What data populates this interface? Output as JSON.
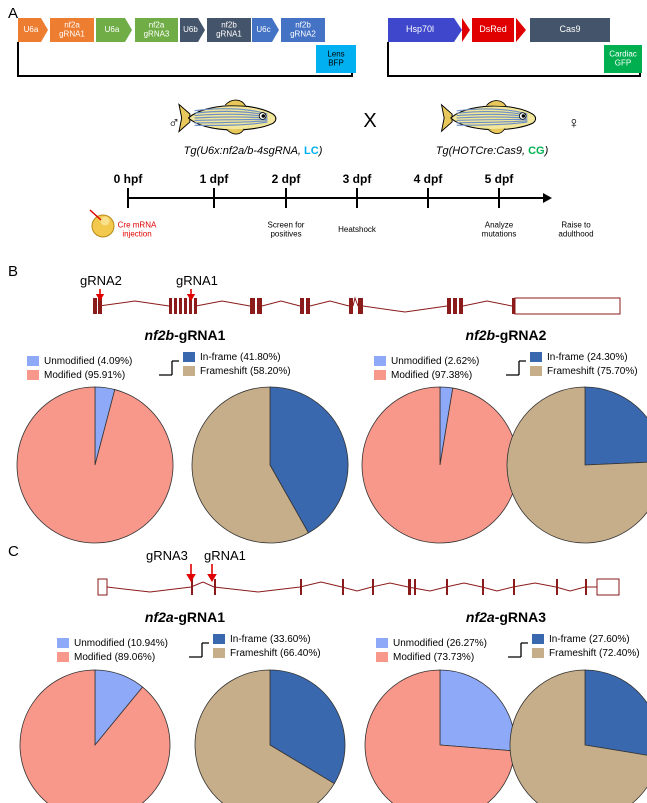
{
  "panels": {
    "A": {
      "letter": "A",
      "left_construct": {
        "elements": [
          {
            "label": "U6a",
            "color": "#ED7D31",
            "shape": "arrow"
          },
          {
            "label": "nf2a\ngRNA1",
            "color": "#ED7D31",
            "shape": "box"
          },
          {
            "label": "U6a",
            "color": "#70AD47",
            "shape": "arrow"
          },
          {
            "label": "nf2a\ngRNA3",
            "color": "#70AD47",
            "shape": "box"
          },
          {
            "label": "U6b",
            "color": "#44546A",
            "shape": "arrow"
          },
          {
            "label": "nf2b\ngRNA1",
            "color": "#44546A",
            "shape": "box"
          },
          {
            "label": "U6c",
            "color": "#4472C4",
            "shape": "arrow"
          },
          {
            "label": "nf2b\ngRNA2",
            "color": "#4472C4",
            "shape": "box"
          }
        ],
        "marker": {
          "label": "Lens\nBFP",
          "color": "#00B0F0"
        }
      },
      "right_construct": {
        "elements": [
          {
            "label": "Hsp70l",
            "color": "#3F48CC",
            "shape": "arrow"
          },
          {
            "label": "DsRed",
            "color": "#E00000",
            "shape": "box"
          },
          {
            "label": "Cas9",
            "color": "#44546A",
            "shape": "box"
          }
        ],
        "marker": {
          "label": "Cardiac\nGFP",
          "color": "#00B050"
        }
      },
      "male_symbol": "♂",
      "female_symbol": "♀",
      "cross_symbol": "X",
      "fish_left_label": {
        "prefix": "Tg(U6x:nf2a/b-4sgRNA, ",
        "tag": "LC",
        "suffix": ")",
        "tag_color": "#00B0F0"
      },
      "fish_right_label": {
        "prefix": "Tg(HOTCre:Cas9, ",
        "tag": "CG",
        "suffix": ")",
        "tag_color": "#00B050"
      },
      "timeline": {
        "ticks": [
          "0 hpf",
          "1 dpf",
          "2 dpf",
          "3 dpf",
          "4 dpf",
          "5 dpf"
        ],
        "events": [
          {
            "at": 0,
            "text": "Cre mRNA\ninjection",
            "color": "#E00000"
          },
          {
            "at": 2,
            "text": "Screen for\npositives",
            "color": "#000000"
          },
          {
            "at": 3,
            "text": "Heatshock",
            "color": "#000000"
          },
          {
            "at": 5,
            "text": "Analyze\nmutations",
            "color": "#000000"
          },
          {
            "at": 6,
            "text": "Raise to\nadulthood",
            "color": "#000000"
          }
        ]
      }
    },
    "B": {
      "letter": "B",
      "gene_labels": [
        "gRNA2",
        "gRNA1"
      ],
      "plots": [
        {
          "title_gene": "nf2b",
          "title_suffix": "-gRNA1",
          "legend": {
            "unmodified": "Unmodified (4.09%)",
            "modified": "Modified (95.91%)",
            "inframe": "In-frame (41.80%)",
            "frameshift": "Frameshift (58.20%)"
          }
        },
        {
          "title_gene": "nf2b",
          "title_suffix": "-gRNA2",
          "legend": {
            "unmodified": "Unmodified (2.62%)",
            "modified": "Modified (97.38%)",
            "inframe": "In-frame (24.30%)",
            "frameshift": "Frameshift (75.70%)"
          }
        }
      ]
    },
    "C": {
      "letter": "C",
      "gene_labels": [
        "gRNA3",
        "gRNA1"
      ],
      "plots": [
        {
          "title_gene": "nf2a",
          "title_suffix": "-gRNA1",
          "legend": {
            "unmodified": "Unmodified (10.94%)",
            "modified": "Modified (89.06%)",
            "inframe": "In-frame (33.60%)",
            "frameshift": "Frameshift (66.40%)"
          }
        },
        {
          "title_gene": "nf2a",
          "title_suffix": "-gRNA3",
          "legend": {
            "unmodified": "Unmodified (26.27%)",
            "modified": "Modified (73.73%)",
            "inframe": "In-frame (27.60%)",
            "frameshift": "Frameshift (72.40%)"
          }
        }
      ]
    }
  },
  "colors": {
    "unmodified": "#8EA9F8",
    "modified": "#F8988A",
    "inframe": "#3A68AE",
    "frameshift": "#C6AE8A",
    "gene_line": "#8B1A1A",
    "arrow_red": "#E00000"
  },
  "chart_data": [
    {
      "type": "pie",
      "panel": "B",
      "title": "nf2b-gRNA1",
      "series": [
        {
          "values": [
            4.09,
            95.91
          ]
        }
      ],
      "categories": [
        "Unmodified",
        "Modified"
      ]
    },
    {
      "type": "pie",
      "panel": "B",
      "title": "nf2b-gRNA1",
      "series": [
        {
          "values": [
            41.8,
            58.2
          ]
        }
      ],
      "categories": [
        "In-frame",
        "Frameshift"
      ]
    },
    {
      "type": "pie",
      "panel": "B",
      "title": "nf2b-gRNA2",
      "series": [
        {
          "values": [
            2.62,
            97.38
          ]
        }
      ],
      "categories": [
        "Unmodified",
        "Modified"
      ]
    },
    {
      "type": "pie",
      "panel": "B",
      "title": "nf2b-gRNA2",
      "series": [
        {
          "values": [
            24.3,
            75.7
          ]
        }
      ],
      "categories": [
        "In-frame",
        "Frameshift"
      ]
    },
    {
      "type": "pie",
      "panel": "C",
      "title": "nf2a-gRNA1",
      "series": [
        {
          "values": [
            10.94,
            89.06
          ]
        }
      ],
      "categories": [
        "Unmodified",
        "Modified"
      ]
    },
    {
      "type": "pie",
      "panel": "C",
      "title": "nf2a-gRNA1",
      "series": [
        {
          "values": [
            33.6,
            66.4
          ]
        }
      ],
      "categories": [
        "In-frame",
        "Frameshift"
      ]
    },
    {
      "type": "pie",
      "panel": "C",
      "title": "nf2a-gRNA3",
      "series": [
        {
          "values": [
            26.27,
            73.73
          ]
        }
      ],
      "categories": [
        "Unmodified",
        "Modified"
      ]
    },
    {
      "type": "pie",
      "panel": "C",
      "title": "nf2a-gRNA3",
      "series": [
        {
          "values": [
            27.6,
            72.4
          ]
        }
      ],
      "categories": [
        "In-frame",
        "Frameshift"
      ]
    }
  ]
}
